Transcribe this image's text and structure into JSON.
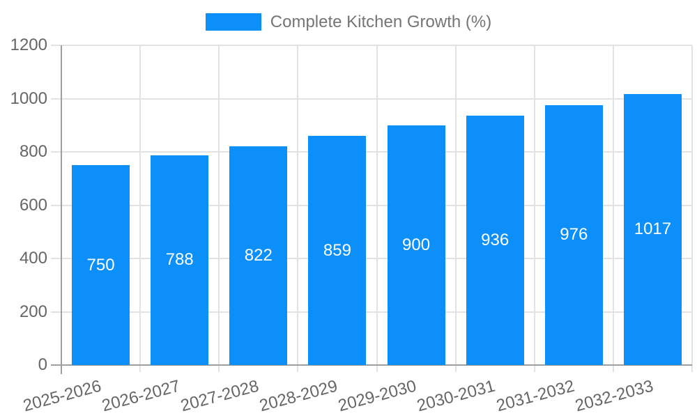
{
  "chart_data": {
    "type": "bar",
    "title": "Complete Kitchen Growth (%)",
    "categories": [
      "2025-2026",
      "2026-2027",
      "2027-2028",
      "2028-2029",
      "2029-2030",
      "2030-2031",
      "2031-2032",
      "2032-2033"
    ],
    "values": [
      750,
      788,
      822,
      859,
      900,
      936,
      976,
      1017
    ],
    "xlabel": "",
    "ylabel": "",
    "ylim": [
      0,
      1200
    ],
    "y_ticks": [
      0,
      200,
      400,
      600,
      800,
      1000,
      1200
    ],
    "grid": true,
    "legend_position": "top",
    "value_labels_shown": true,
    "colors": {
      "bar": "#0C8FF9",
      "grid": "#e2e2e2",
      "axis": "#9e9e9e",
      "tick_label": "#666666",
      "legend_text": "#757575",
      "value_label": "#ffffff",
      "background": "#ffffff"
    }
  }
}
